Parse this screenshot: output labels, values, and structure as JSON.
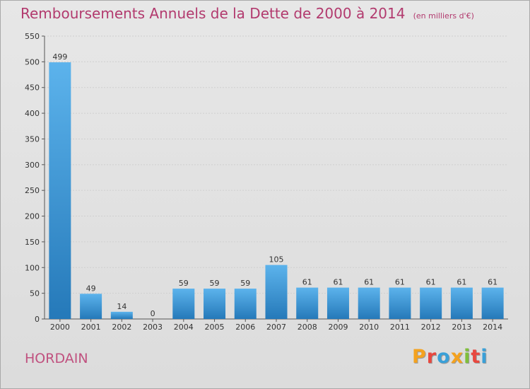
{
  "chart": {
    "title": "Remboursements Annuels de la Dette de 2000 à 2014",
    "unit": "(en milliers d'€)",
    "commune": "HORDAIN",
    "brand": "Proxiti"
  },
  "colors": {
    "title": "#b23a6e",
    "commune": "#c0517f",
    "bar_top": "#5cb3ec",
    "bar_bottom": "#2579b9",
    "grid": "#cfcfcf",
    "brand": [
      "#f4a21f",
      "#e8483f",
      "#3aa0d8",
      "#f4a21f",
      "#7fbf3b",
      "#e8483f",
      "#3aa0d8"
    ]
  },
  "chart_data": {
    "type": "bar",
    "title": "Remboursements Annuels de la Dette de 2000 à 2014",
    "xlabel": "",
    "ylabel": "",
    "categories": [
      "2000",
      "2001",
      "2002",
      "2003",
      "2004",
      "2005",
      "2006",
      "2007",
      "2008",
      "2009",
      "2010",
      "2011",
      "2012",
      "2013",
      "2014"
    ],
    "values": [
      499,
      49,
      14,
      0,
      59,
      59,
      59,
      105,
      61,
      61,
      61,
      61,
      61,
      61,
      61
    ],
    "ylim": [
      0,
      550
    ],
    "yticks": [
      0,
      50,
      100,
      150,
      200,
      250,
      300,
      350,
      400,
      450,
      500,
      550
    ],
    "grid": true,
    "legend": "none"
  }
}
